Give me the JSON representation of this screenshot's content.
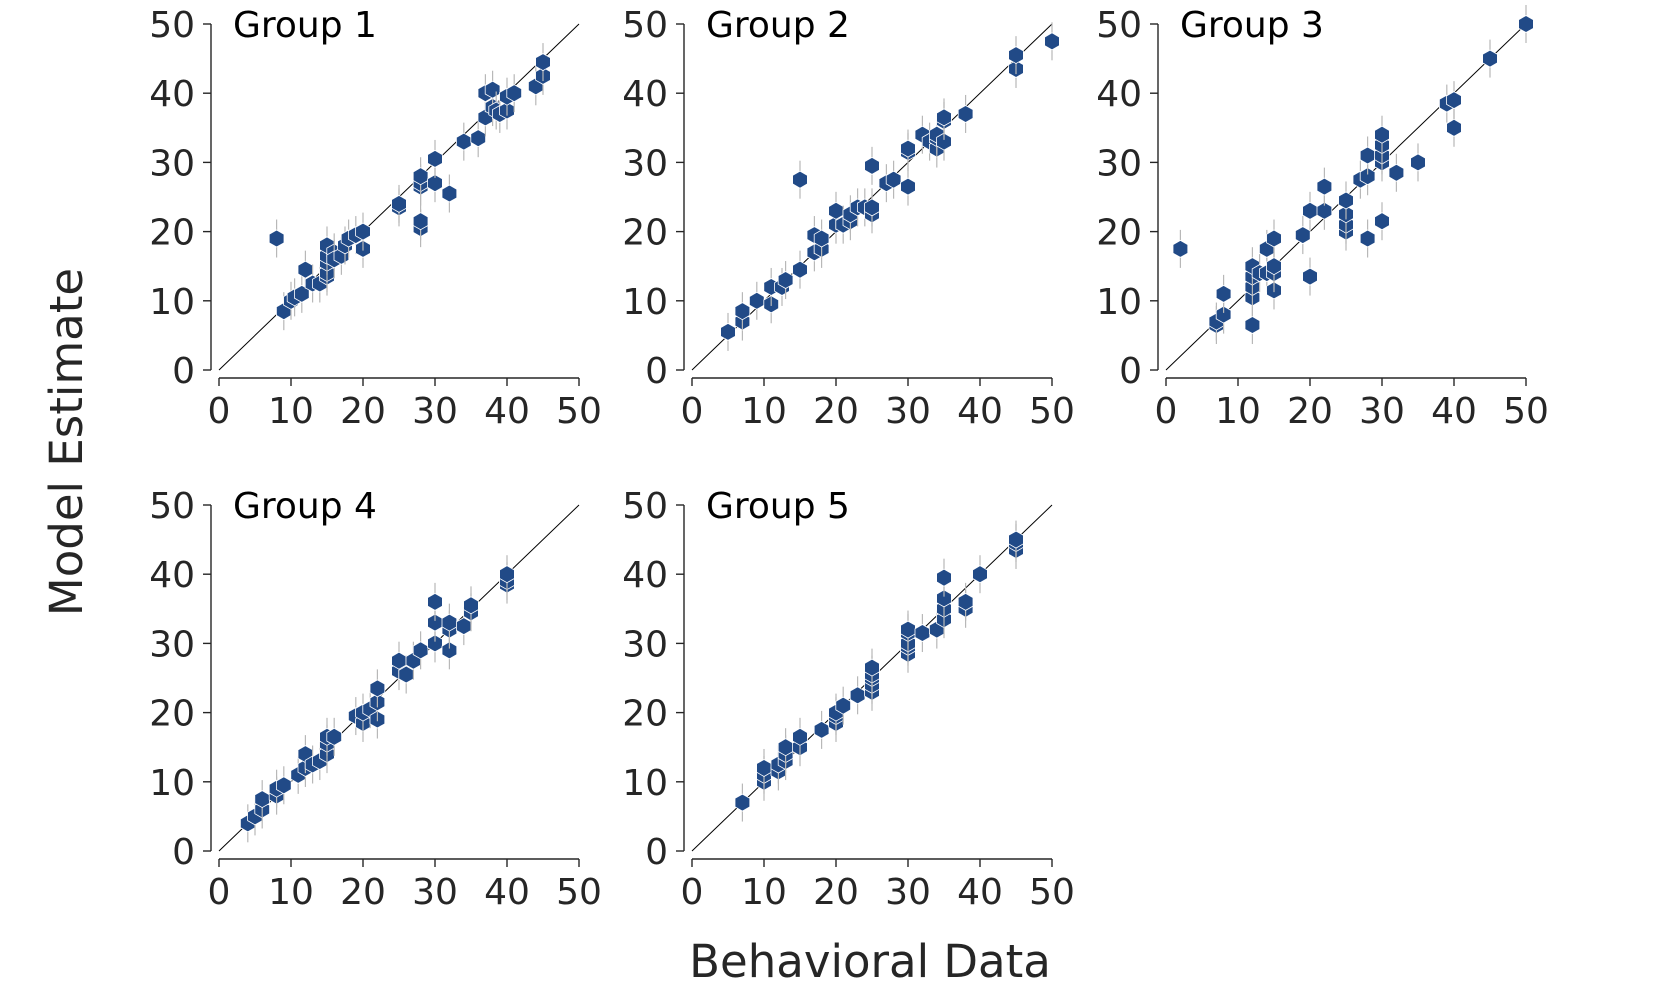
{
  "figure": {
    "xlabel": "Behavioral Data",
    "ylabel": "Model Estimate",
    "marker_color": "#214a87",
    "errorbar_color": "#b8b8b8",
    "diagonal_color": "#000000"
  },
  "chart_data": [
    {
      "type": "scatter",
      "title": "Group 1",
      "xlim": [
        0,
        50
      ],
      "ylim": [
        0,
        50
      ],
      "xticks": [
        "0",
        "10",
        "20",
        "30",
        "40",
        "50"
      ],
      "yticks": [
        "0",
        "10",
        "20",
        "30",
        "40",
        "50"
      ],
      "reference_line": "y = x",
      "points": [
        [
          8,
          19
        ],
        [
          9,
          8.5
        ],
        [
          10,
          10
        ],
        [
          10.5,
          10.5
        ],
        [
          11.5,
          11
        ],
        [
          12,
          14.5
        ],
        [
          13,
          12.5
        ],
        [
          14,
          12.5
        ],
        [
          15,
          13.5
        ],
        [
          15,
          14
        ],
        [
          15,
          15.5
        ],
        [
          15,
          16.5
        ],
        [
          15,
          18
        ],
        [
          16,
          17
        ],
        [
          16,
          16
        ],
        [
          17,
          16.5
        ],
        [
          17.5,
          18
        ],
        [
          18,
          19
        ],
        [
          19,
          19.5
        ],
        [
          20,
          17.5
        ],
        [
          20,
          20
        ],
        [
          25,
          23.5
        ],
        [
          25,
          24
        ],
        [
          28,
          20.5
        ],
        [
          28,
          21.5
        ],
        [
          28,
          26.5
        ],
        [
          28,
          27
        ],
        [
          28,
          28
        ],
        [
          30,
          27
        ],
        [
          30,
          30.5
        ],
        [
          32,
          25.5
        ],
        [
          34,
          33
        ],
        [
          36,
          33.5
        ],
        [
          37,
          36.5
        ],
        [
          37,
          40
        ],
        [
          38,
          38
        ],
        [
          38,
          40.5
        ],
        [
          38.5,
          37.5
        ],
        [
          39,
          37
        ],
        [
          40,
          37.5
        ],
        [
          40,
          39.5
        ],
        [
          41,
          40
        ],
        [
          44,
          41
        ],
        [
          45,
          42.5
        ],
        [
          45,
          44.5
        ]
      ]
    },
    {
      "type": "scatter",
      "title": "Group 2",
      "xlim": [
        0,
        50
      ],
      "ylim": [
        0,
        50
      ],
      "xticks": [
        "0",
        "10",
        "20",
        "30",
        "40",
        "50"
      ],
      "yticks": [
        "0",
        "10",
        "20",
        "30",
        "40",
        "50"
      ],
      "reference_line": "y = x",
      "points": [
        [
          5,
          5.5
        ],
        [
          7,
          7
        ],
        [
          7,
          8.5
        ],
        [
          9,
          10
        ],
        [
          11,
          9.5
        ],
        [
          11,
          12
        ],
        [
          12.5,
          12
        ],
        [
          13,
          13
        ],
        [
          15,
          14.5
        ],
        [
          15,
          27.5
        ],
        [
          17,
          17
        ],
        [
          17,
          19.5
        ],
        [
          18,
          17.5
        ],
        [
          18,
          19
        ],
        [
          20,
          21
        ],
        [
          20,
          23
        ],
        [
          21,
          21
        ],
        [
          22,
          21.5
        ],
        [
          22,
          22.5
        ],
        [
          23,
          23.5
        ],
        [
          24,
          23.5
        ],
        [
          25,
          22.5
        ],
        [
          25,
          23.5
        ],
        [
          25,
          29.5
        ],
        [
          27,
          27
        ],
        [
          28,
          27.5
        ],
        [
          30,
          26.5
        ],
        [
          30,
          31.5
        ],
        [
          30,
          32
        ],
        [
          32,
          34
        ],
        [
          33,
          33
        ],
        [
          34,
          32
        ],
        [
          34,
          33.5
        ],
        [
          34,
          34
        ],
        [
          35,
          33
        ],
        [
          35,
          36
        ],
        [
          35,
          36.5
        ],
        [
          38,
          37
        ],
        [
          45,
          43.5
        ],
        [
          45,
          45.5
        ],
        [
          50,
          47.5
        ]
      ]
    },
    {
      "type": "scatter",
      "title": "Group 3",
      "xlim": [
        0,
        50
      ],
      "ylim": [
        0,
        50
      ],
      "xticks": [
        "0",
        "10",
        "20",
        "30",
        "40",
        "50"
      ],
      "yticks": [
        "0",
        "10",
        "20",
        "30",
        "40",
        "50"
      ],
      "reference_line": "y = x",
      "points": [
        [
          2,
          17.5
        ],
        [
          7,
          6.5
        ],
        [
          7,
          7
        ],
        [
          8,
          8
        ],
        [
          8,
          11
        ],
        [
          12,
          6.5
        ],
        [
          12,
          10.5
        ],
        [
          12,
          12
        ],
        [
          12,
          13.5
        ],
        [
          12,
          15
        ],
        [
          13,
          14
        ],
        [
          14,
          14
        ],
        [
          14,
          17.5
        ],
        [
          15,
          11.5
        ],
        [
          15,
          14
        ],
        [
          15,
          15
        ],
        [
          15,
          19
        ],
        [
          19,
          19.5
        ],
        [
          20,
          13.5
        ],
        [
          20,
          23
        ],
        [
          22,
          23
        ],
        [
          22,
          26.5
        ],
        [
          25,
          20
        ],
        [
          25,
          21
        ],
        [
          25,
          22.5
        ],
        [
          25,
          24.5
        ],
        [
          27,
          27.5
        ],
        [
          28,
          19
        ],
        [
          28,
          28
        ],
        [
          28,
          31
        ],
        [
          30,
          21.5
        ],
        [
          30,
          30
        ],
        [
          30,
          31
        ],
        [
          30,
          32.5
        ],
        [
          30,
          34
        ],
        [
          32,
          28.5
        ],
        [
          35,
          30
        ],
        [
          39,
          38.5
        ],
        [
          40,
          35
        ],
        [
          40,
          39
        ],
        [
          45,
          45
        ],
        [
          50,
          50
        ]
      ]
    },
    {
      "type": "scatter",
      "title": "Group 4",
      "xlim": [
        0,
        50
      ],
      "ylim": [
        0,
        50
      ],
      "xticks": [
        "0",
        "10",
        "20",
        "30",
        "40",
        "50"
      ],
      "yticks": [
        "0",
        "10",
        "20",
        "30",
        "40",
        "50"
      ],
      "reference_line": "y = x",
      "points": [
        [
          4,
          4
        ],
        [
          5,
          5
        ],
        [
          6,
          6
        ],
        [
          6,
          7.5
        ],
        [
          8,
          8
        ],
        [
          8,
          9
        ],
        [
          9,
          9.5
        ],
        [
          11,
          11
        ],
        [
          12,
          12
        ],
        [
          12,
          14
        ],
        [
          13,
          12.5
        ],
        [
          14,
          13
        ],
        [
          15,
          14
        ],
        [
          15,
          15.5
        ],
        [
          15,
          16.5
        ],
        [
          16,
          16.5
        ],
        [
          19,
          19.5
        ],
        [
          20,
          18.5
        ],
        [
          20,
          20
        ],
        [
          21,
          20.5
        ],
        [
          22,
          19
        ],
        [
          22,
          21.5
        ],
        [
          22,
          23.5
        ],
        [
          25,
          26
        ],
        [
          25,
          27.5
        ],
        [
          26,
          25.5
        ],
        [
          27,
          27.5
        ],
        [
          28,
          29
        ],
        [
          30,
          30
        ],
        [
          30,
          33
        ],
        [
          30,
          36
        ],
        [
          32,
          29
        ],
        [
          32,
          32
        ],
        [
          32,
          33
        ],
        [
          34,
          32.5
        ],
        [
          35,
          34.5
        ],
        [
          35,
          35.5
        ],
        [
          40,
          38.5
        ],
        [
          40,
          39
        ],
        [
          40,
          40
        ]
      ]
    },
    {
      "type": "scatter",
      "title": "Group 5",
      "xlim": [
        0,
        50
      ],
      "ylim": [
        0,
        50
      ],
      "xticks": [
        "0",
        "10",
        "20",
        "30",
        "40",
        "50"
      ],
      "yticks": [
        "0",
        "10",
        "20",
        "30",
        "40",
        "50"
      ],
      "reference_line": "y = x",
      "points": [
        [
          7,
          7
        ],
        [
          10,
          10
        ],
        [
          10,
          11
        ],
        [
          10,
          12
        ],
        [
          12,
          11.5
        ],
        [
          12,
          12.5
        ],
        [
          13,
          13
        ],
        [
          13,
          14
        ],
        [
          13,
          15
        ],
        [
          15,
          15
        ],
        [
          15,
          16.5
        ],
        [
          18,
          17.5
        ],
        [
          20,
          18.5
        ],
        [
          20,
          19.5
        ],
        [
          20,
          20
        ],
        [
          21,
          21
        ],
        [
          23,
          22.5
        ],
        [
          25,
          23
        ],
        [
          25,
          24
        ],
        [
          25,
          25
        ],
        [
          25,
          25.5
        ],
        [
          25,
          26.5
        ],
        [
          30,
          28.5
        ],
        [
          30,
          29.5
        ],
        [
          30,
          30
        ],
        [
          30,
          31.5
        ],
        [
          30,
          32
        ],
        [
          32,
          31.5
        ],
        [
          34,
          32
        ],
        [
          35,
          33.5
        ],
        [
          35,
          35
        ],
        [
          35,
          36.5
        ],
        [
          35,
          39.5
        ],
        [
          38,
          35
        ],
        [
          38,
          36
        ],
        [
          40,
          40
        ],
        [
          45,
          43.5
        ],
        [
          45,
          44.5
        ],
        [
          45,
          45
        ]
      ]
    }
  ]
}
